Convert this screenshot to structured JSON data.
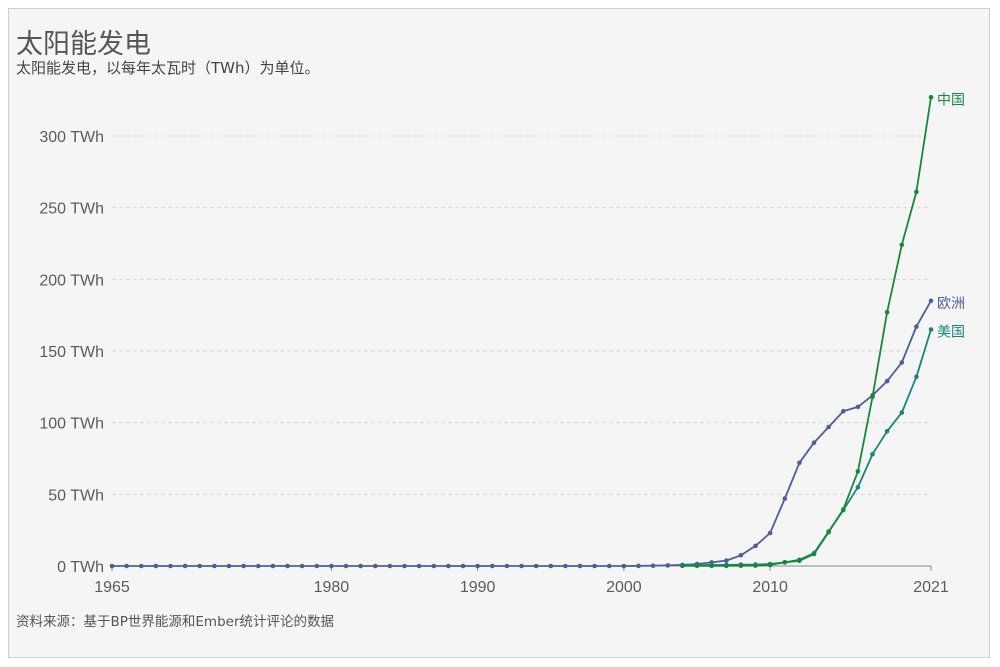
{
  "title": "太阳能发电",
  "subtitle": "太阳能发电，以每年太瓦时（TWh）为单位。",
  "source": "资料来源：基于BP世界能源和Ember统计评论的数据",
  "chart_data": {
    "type": "line",
    "title": "太阳能发电",
    "subtitle": "太阳能发电，以每年太瓦时（TWh）为单位。",
    "ylim": [
      0,
      300
    ],
    "xlim": [
      1965,
      2021
    ],
    "yticks": [
      "0 TWh",
      "50 TWh",
      "100 TWh",
      "150 TWh",
      "200 TWh",
      "250 TWh",
      "300 TWh"
    ],
    "ytick_values": [
      0,
      50,
      100,
      150,
      200,
      250,
      300
    ],
    "xticks": [
      "1965",
      "1980",
      "1990",
      "2000",
      "2010",
      "2021"
    ],
    "xtick_values": [
      1965,
      1980,
      1990,
      2000,
      2010,
      2021
    ],
    "grid": true,
    "series": [
      {
        "name": "欧洲",
        "color": "#4c5f98",
        "x": [
          1965,
          1966,
          1967,
          1968,
          1969,
          1970,
          1971,
          1972,
          1973,
          1974,
          1975,
          1976,
          1977,
          1978,
          1979,
          1980,
          1981,
          1982,
          1983,
          1984,
          1985,
          1986,
          1987,
          1988,
          1989,
          1990,
          1991,
          1992,
          1993,
          1994,
          1995,
          1996,
          1997,
          1998,
          1999,
          2000,
          2001,
          2002,
          2003,
          2004,
          2005,
          2006,
          2007,
          2008,
          2009,
          2010,
          2011,
          2012,
          2013,
          2014,
          2015,
          2016,
          2017,
          2018,
          2019,
          2020,
          2021
        ],
        "values": [
          0,
          0,
          0,
          0,
          0,
          0,
          0,
          0,
          0,
          0,
          0,
          0,
          0,
          0,
          0,
          0,
          0,
          0,
          0,
          0,
          0,
          0,
          0,
          0,
          0,
          0,
          0,
          0,
          0,
          0,
          0,
          0,
          0,
          0,
          0,
          0,
          0.1,
          0.2,
          0.4,
          0.8,
          1.4,
          2.5,
          3.8,
          7.5,
          14,
          23,
          47,
          72,
          86,
          97,
          108,
          111,
          119,
          129,
          142,
          167,
          185
        ]
      },
      {
        "name": "美国",
        "color": "#18877a",
        "x": [
          2004,
          2005,
          2006,
          2007,
          2008,
          2009,
          2010,
          2011,
          2012,
          2013,
          2014,
          2015,
          2016,
          2017,
          2018,
          2019,
          2020,
          2021
        ],
        "values": [
          0.5,
          0.6,
          0.7,
          0.8,
          0.9,
          1.0,
          1.4,
          2.5,
          4.3,
          9,
          24,
          39,
          55,
          78,
          94,
          107,
          132,
          165
        ]
      },
      {
        "name": "中国",
        "color": "#16883e",
        "x": [
          2004,
          2005,
          2006,
          2007,
          2008,
          2009,
          2010,
          2011,
          2012,
          2013,
          2014,
          2015,
          2016,
          2017,
          2018,
          2019,
          2020,
          2021
        ],
        "values": [
          0.1,
          0.1,
          0.1,
          0.1,
          0.2,
          0.3,
          0.7,
          2.6,
          3.6,
          8.4,
          23.5,
          39.5,
          66,
          118,
          177,
          224,
          261,
          327
        ]
      }
    ]
  }
}
